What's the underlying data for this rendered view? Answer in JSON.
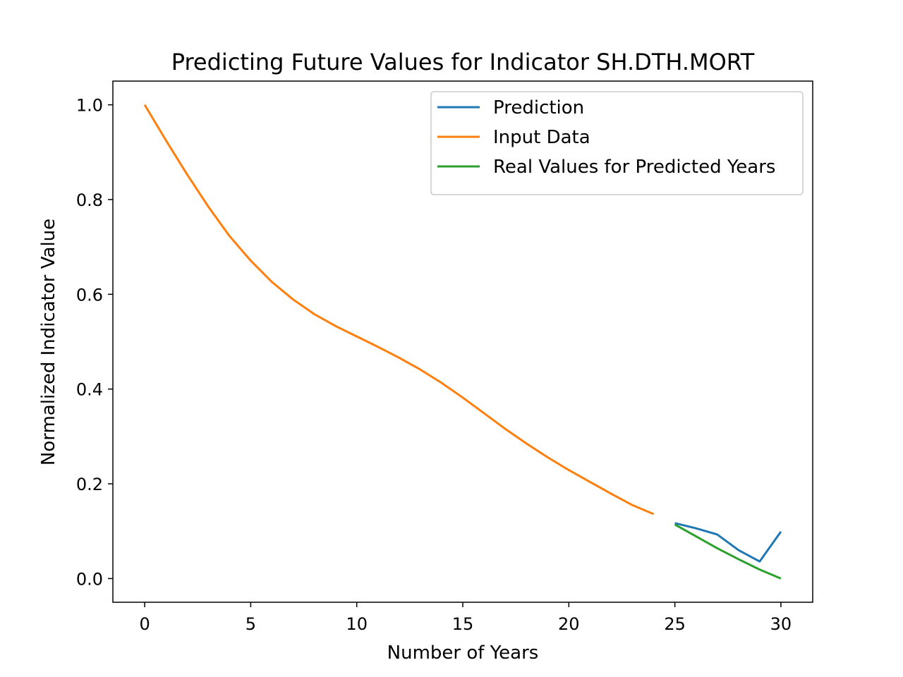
{
  "chart_data": {
    "type": "line",
    "title": "Predicting Future Values for Indicator SH.DTH.MORT",
    "xlabel": "Number of Years",
    "ylabel": "Normalized Indicator Value",
    "xlim": [
      -1.5,
      31.5
    ],
    "ylim": [
      -0.05,
      1.05
    ],
    "xticks": [
      0,
      5,
      10,
      15,
      20,
      25,
      30
    ],
    "xtick_labels": [
      "0",
      "5",
      "10",
      "15",
      "20",
      "25",
      "30"
    ],
    "yticks": [
      0.0,
      0.2,
      0.4,
      0.6,
      0.8,
      1.0
    ],
    "ytick_labels": [
      "0.0",
      "0.2",
      "0.4",
      "0.6",
      "0.8",
      "1.0"
    ],
    "grid": false,
    "legend_position": "top-right",
    "series": [
      {
        "name": "Prediction",
        "color": "#1f77b4",
        "x": [
          25,
          26,
          27,
          28,
          29,
          30
        ],
        "y": [
          0.117,
          0.106,
          0.093,
          0.06,
          0.036,
          0.099
        ]
      },
      {
        "name": "Input Data",
        "color": "#ff7f0e",
        "x": [
          0,
          1,
          2,
          3,
          4,
          5,
          6,
          7,
          8,
          9,
          10,
          11,
          12,
          13,
          14,
          15,
          16,
          17,
          18,
          19,
          20,
          21,
          22,
          23,
          24
        ],
        "y": [
          1.0,
          0.925,
          0.853,
          0.785,
          0.723,
          0.671,
          0.626,
          0.589,
          0.558,
          0.533,
          0.511,
          0.489,
          0.466,
          0.441,
          0.413,
          0.382,
          0.349,
          0.316,
          0.285,
          0.256,
          0.229,
          0.204,
          0.179,
          0.155,
          0.136
        ]
      },
      {
        "name": "Real Values for Predicted Years",
        "color": "#2ca02c",
        "x": [
          25,
          26,
          27,
          28,
          29,
          30
        ],
        "y": [
          0.114,
          0.089,
          0.064,
          0.041,
          0.019,
          0.0
        ]
      }
    ]
  }
}
